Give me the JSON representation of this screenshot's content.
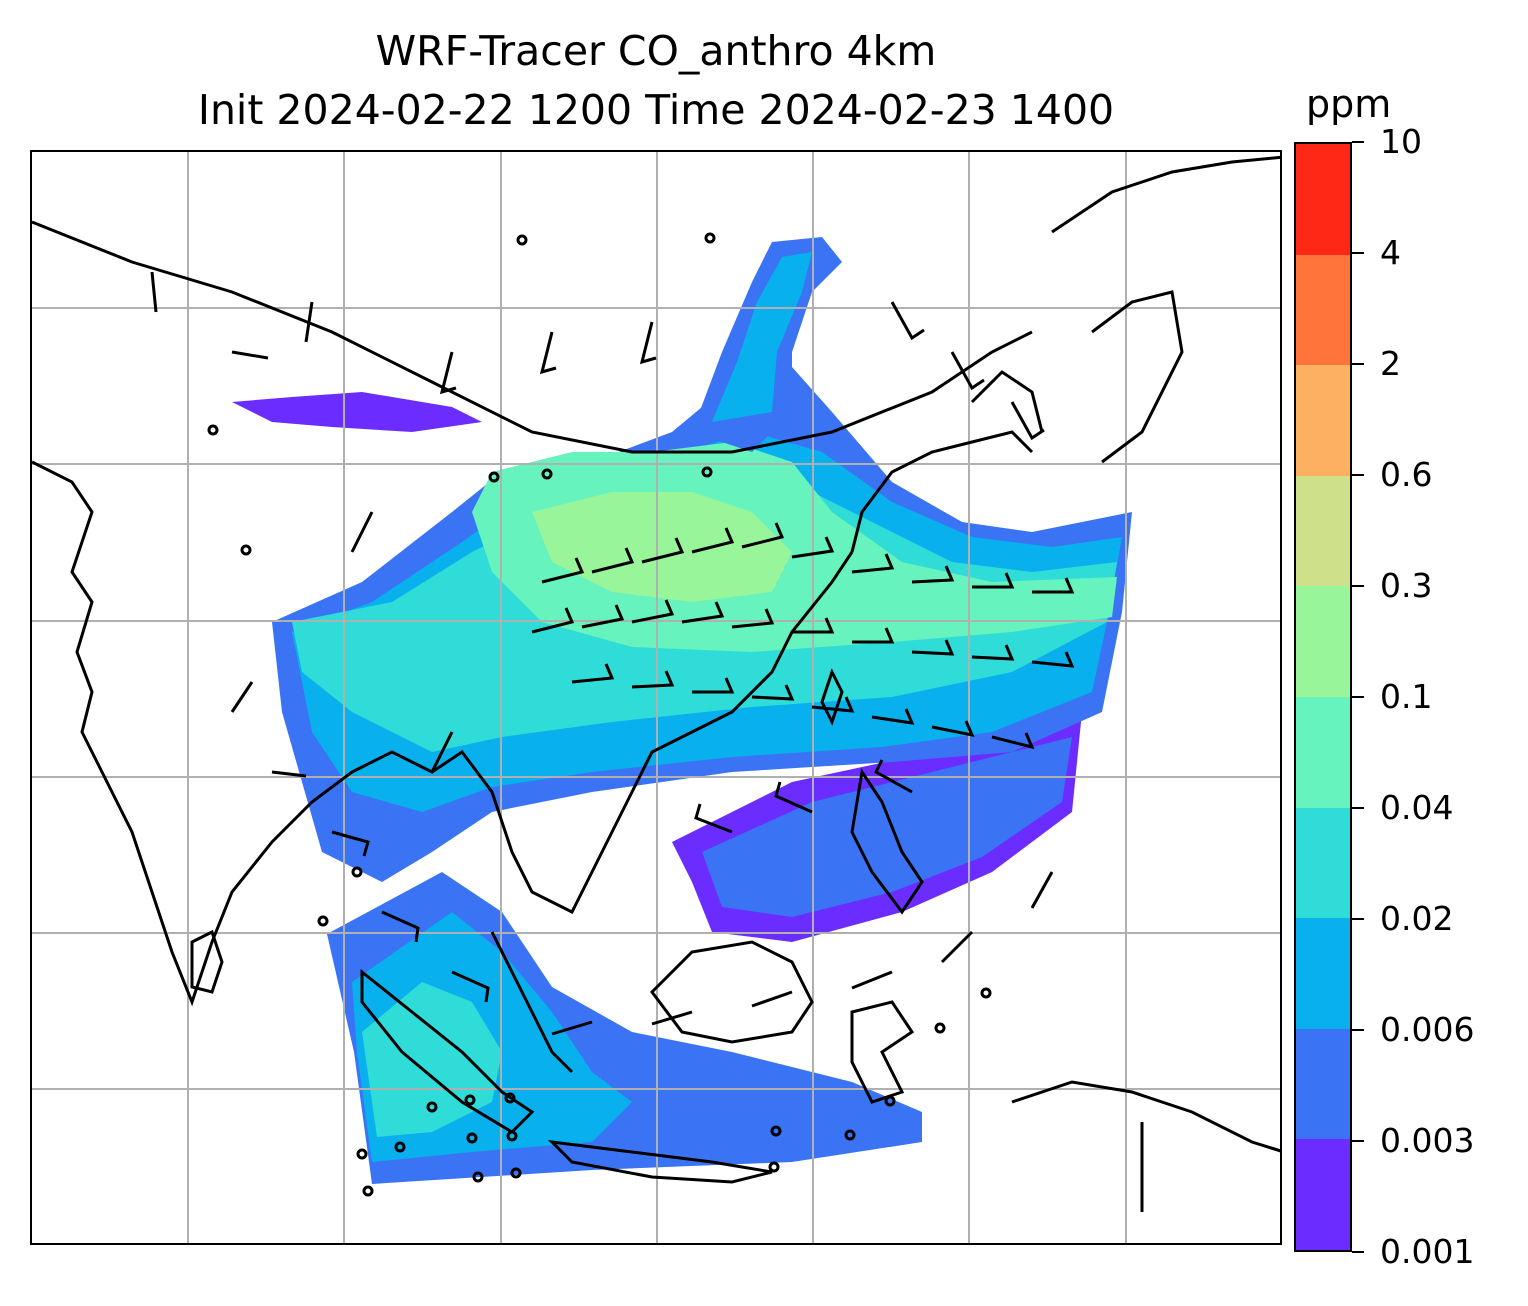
{
  "title": {
    "line1": "WRF-Tracer CO_anthro 4km",
    "line2": "Init 2024-02-22 1200 Time 2024-02-23 1400"
  },
  "colorbar": {
    "unit": "ppm",
    "levels": [
      "0.001",
      "0.003",
      "0.006",
      "0.02",
      "0.04",
      "0.1",
      "0.3",
      "0.6",
      "2",
      "4",
      "10"
    ],
    "colors": [
      "#6a2cff",
      "#3a74f4",
      "#08b0ee",
      "#2fdcd8",
      "#66f3bd",
      "#99f59a",
      "#cfe08a",
      "#fdb062",
      "#ff743b",
      "#ff2817"
    ]
  },
  "map": {
    "graticule_color": "#b0b0b0",
    "coastline_color": "#000000",
    "wind_barb_color": "#000000",
    "land_color": "#ffffff"
  }
}
